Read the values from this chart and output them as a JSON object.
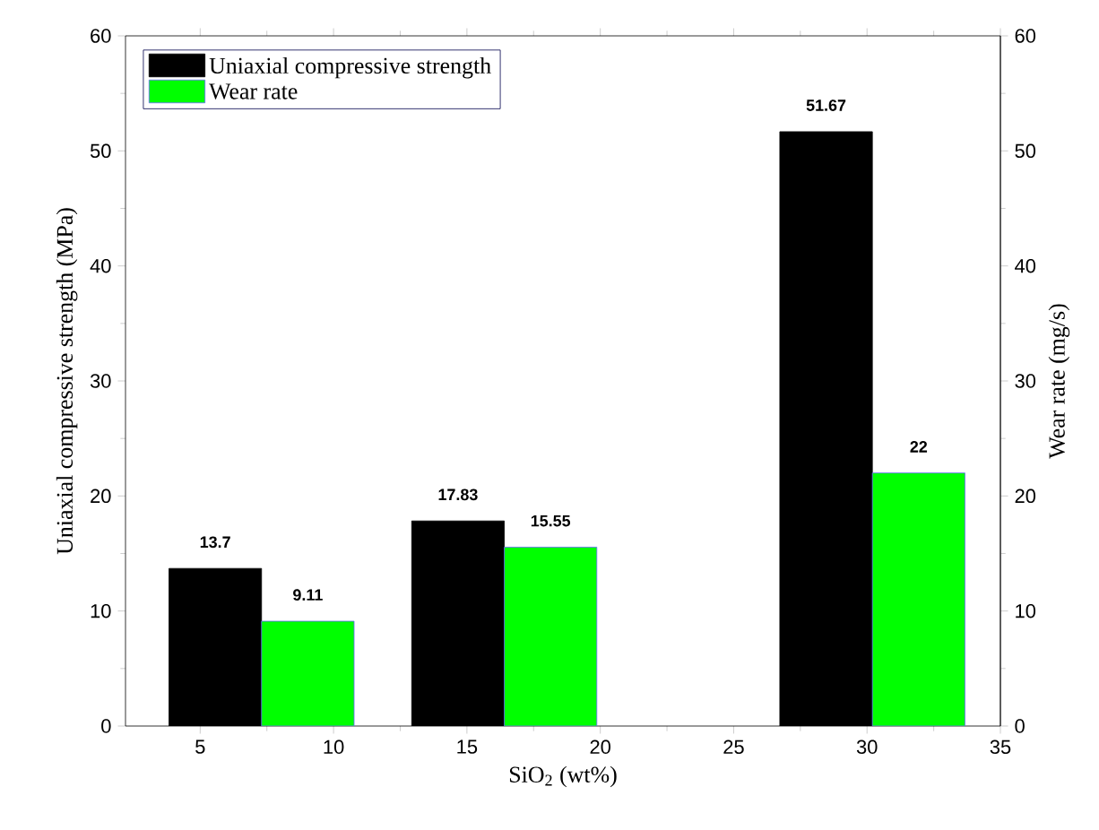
{
  "chart_data": {
    "type": "bar",
    "xlabel": "SiO$_{2}$ (wt%)",
    "ylabel": "Uniaxial compressive strength (MPa)",
    "y2label": "Wear rate (mg/s)",
    "x": [
      7.3,
      16.4,
      30.2
    ],
    "series": [
      {
        "name": "Uniaxial compressive strength",
        "color": "#000000",
        "values": [
          13.7,
          17.83,
          51.67
        ]
      },
      {
        "name": "Wear rate",
        "color": "#00ff00",
        "values": [
          9.11,
          15.55,
          22
        ],
        "axis": "y2"
      }
    ],
    "xlim": [
      2.2,
      35
    ],
    "xticks": [
      5,
      10,
      15,
      20,
      25,
      30,
      35
    ],
    "ylim": [
      0,
      60
    ],
    "yticks": [
      0,
      10,
      20,
      30,
      40,
      50,
      60
    ],
    "y2lim": [
      0,
      60
    ],
    "y2ticks": [
      0,
      10,
      20,
      30,
      40,
      50,
      60
    ],
    "data_labels": true,
    "legend": "top left"
  }
}
